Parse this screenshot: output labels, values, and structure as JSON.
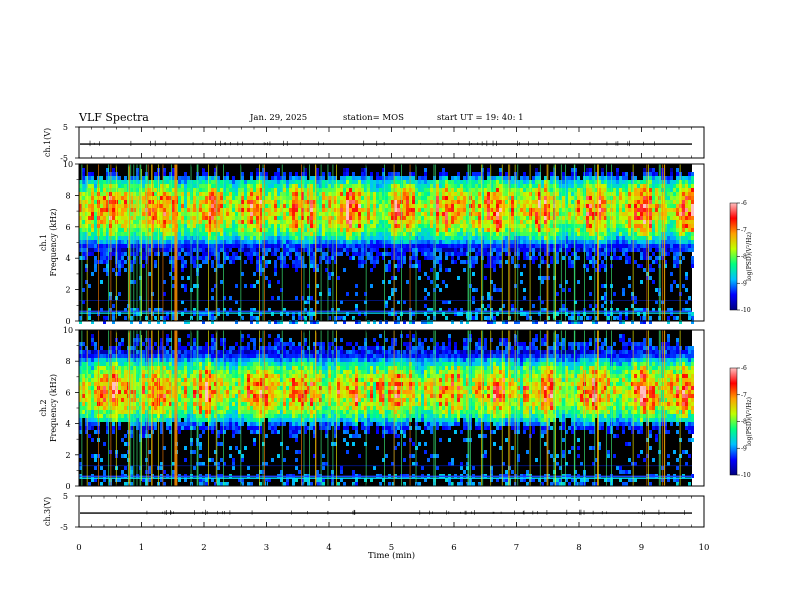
{
  "header": {
    "title": "VLF Spectra",
    "date": "Jan. 29, 2025",
    "station": "station= MOS",
    "start": "start  UT =   19: 40: 1"
  },
  "chart_data": [
    {
      "type": "line",
      "name": "ch1-waveform",
      "ylabel": "ch.1(V)",
      "ylim": [
        -5,
        5
      ],
      "yticks": [
        "5",
        "-5"
      ],
      "x_range": [
        0,
        10
      ],
      "baseline": -0.5
    },
    {
      "type": "heatmap",
      "name": "ch1-spectrogram",
      "ylabel": "ch.1\nFrequency (kHz)",
      "ylim": [
        0,
        10
      ],
      "yticks": [
        "0",
        "2",
        "4",
        "6",
        "8",
        "10"
      ],
      "x_range": [
        0,
        9.85
      ],
      "band_center_khz": 7.2,
      "colorbar": {
        "label": "log(PSD)(V²/Hz)",
        "ticks": [
          "-6",
          "-7",
          "-8",
          "-9",
          "-10"
        ],
        "range": [
          -10,
          -6
        ]
      }
    },
    {
      "type": "heatmap",
      "name": "ch2-spectrogram",
      "ylabel": "ch.2\nFrequency (kHz)",
      "ylim": [
        0,
        10
      ],
      "yticks": [
        "0",
        "2",
        "4",
        "6",
        "8",
        "10"
      ],
      "x_range": [
        0,
        9.85
      ],
      "band_center_khz": 6.2,
      "colorbar": {
        "label": "log(PSD)(V²/Hz)",
        "ticks": [
          "-6",
          "-7",
          "-8",
          "-9",
          "-10"
        ],
        "range": [
          -10,
          -6
        ]
      }
    },
    {
      "type": "line",
      "name": "ch3-waveform",
      "ylabel": "ch.3(V)",
      "ylim": [
        -5,
        5
      ],
      "yticks": [
        "5",
        "-5"
      ],
      "x_range": [
        0,
        10
      ],
      "baseline": -0.5
    }
  ],
  "x_axis": {
    "label": "Time (min)",
    "ticks": [
      "0",
      "1",
      "2",
      "3",
      "4",
      "5",
      "6",
      "7",
      "8",
      "9",
      "10"
    ],
    "range": [
      0,
      10
    ]
  },
  "colors": {
    "background": "#000000",
    "colormap": [
      "#000080",
      "#0000ff",
      "#00c0ff",
      "#00ff80",
      "#c0ff00",
      "#ffa000",
      "#ff0000",
      "#ffc0c0"
    ]
  }
}
